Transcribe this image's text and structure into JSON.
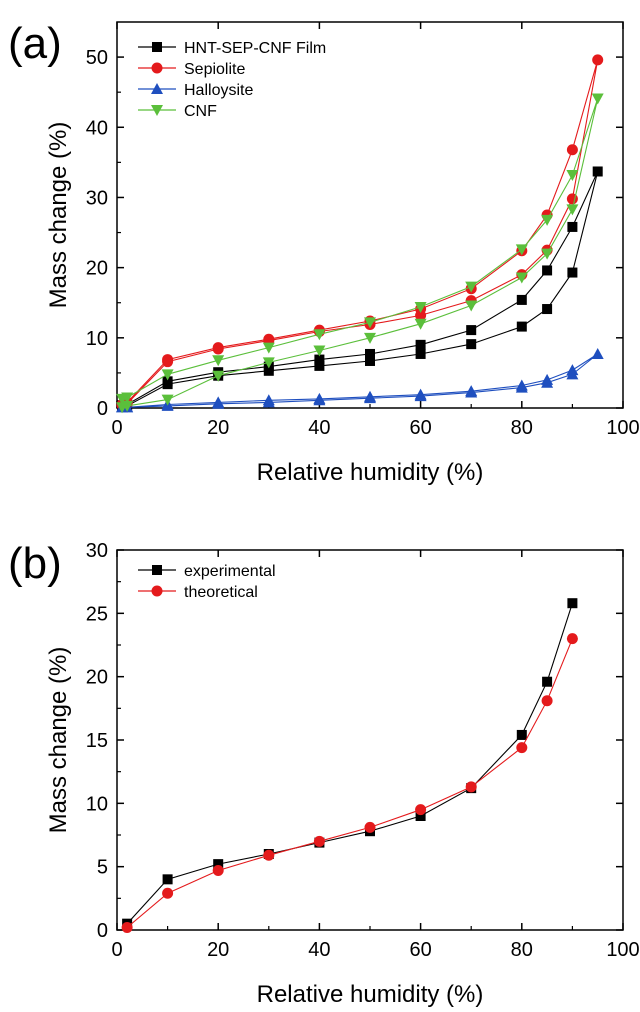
{
  "chart_data": [
    {
      "type": "line",
      "panel_label": "(a)",
      "xlabel": "Relative humidity (%)",
      "ylabel": "Mass change (%)",
      "xlim": [
        0,
        100
      ],
      "ylim": [
        0,
        55
      ],
      "x_ticks": [
        0,
        20,
        40,
        60,
        80,
        100
      ],
      "y_ticks": [
        0,
        10,
        20,
        30,
        40,
        50
      ],
      "grid": false,
      "legend_position": "top-left",
      "series": [
        {
          "name": "HNT-SEP-CNF Film",
          "color": "#000000",
          "marker": "square",
          "x": [
            1,
            2,
            10,
            20,
            30,
            40,
            50,
            60,
            70,
            80,
            85,
            90,
            95,
            90,
            85,
            80,
            70,
            60,
            50,
            40,
            30,
            20,
            10,
            2,
            1
          ],
          "y": [
            0.4,
            0.5,
            3.8,
            5.1,
            5.9,
            6.9,
            7.7,
            9.0,
            11.1,
            15.4,
            19.6,
            25.8,
            33.7,
            19.3,
            14.1,
            11.6,
            9.1,
            7.7,
            6.7,
            6.0,
            5.3,
            4.6,
            3.4,
            0.3,
            0.2
          ]
        },
        {
          "name": "Sepiolite",
          "color": "#e41a1c",
          "marker": "circle",
          "x": [
            1,
            2,
            10,
            20,
            30,
            40,
            50,
            60,
            70,
            80,
            85,
            90,
            95,
            90,
            85,
            80,
            70,
            60,
            50,
            40,
            30,
            20,
            10,
            2,
            1
          ],
          "y": [
            0.5,
            0.8,
            6.9,
            8.6,
            9.8,
            11.1,
            12.4,
            14.1,
            17.0,
            22.4,
            27.5,
            36.8,
            49.6,
            29.8,
            22.5,
            19.0,
            15.3,
            13.2,
            11.9,
            10.9,
            9.6,
            8.4,
            6.6,
            0.6,
            0.4
          ]
        },
        {
          "name": "Halloysite",
          "color": "#1f4fbf",
          "marker": "triangle-up",
          "x": [
            1,
            2,
            10,
            20,
            30,
            40,
            50,
            60,
            70,
            80,
            85,
            90,
            95,
            90,
            85,
            80,
            70,
            60,
            50,
            40,
            30,
            20,
            10,
            2,
            1
          ],
          "y": [
            0.1,
            0.1,
            0.5,
            0.8,
            1.1,
            1.3,
            1.6,
            1.9,
            2.4,
            3.2,
            4.0,
            5.4,
            7.7,
            4.8,
            3.6,
            2.9,
            2.2,
            1.7,
            1.4,
            1.1,
            0.8,
            0.6,
            0.3,
            0.1,
            0.1
          ]
        },
        {
          "name": "CNF",
          "color": "#5bbf3b",
          "marker": "triangle-down",
          "x": [
            1,
            2,
            10,
            20,
            30,
            40,
            50,
            60,
            70,
            80,
            85,
            90,
            95,
            90,
            85,
            80,
            70,
            60,
            50,
            40,
            30,
            20,
            10,
            2,
            1
          ],
          "y": [
            1.3,
            1.5,
            4.8,
            6.8,
            8.6,
            10.5,
            12.2,
            14.4,
            17.3,
            22.6,
            26.8,
            33.2,
            44.1,
            28.3,
            22.0,
            18.6,
            14.6,
            12.0,
            10.0,
            8.2,
            6.5,
            4.6,
            1.2,
            0.3,
            0.1
          ]
        }
      ]
    },
    {
      "type": "line",
      "panel_label": "(b)",
      "xlabel": "Relative humidity (%)",
      "ylabel": "Mass change (%)",
      "xlim": [
        0,
        100
      ],
      "ylim": [
        0,
        30
      ],
      "x_ticks": [
        0,
        20,
        40,
        60,
        80,
        100
      ],
      "y_ticks": [
        0,
        5,
        10,
        15,
        20,
        25,
        30
      ],
      "grid": false,
      "legend_position": "top-left",
      "series": [
        {
          "name": "experimental",
          "color": "#000000",
          "marker": "square",
          "x": [
            2,
            10,
            20,
            30,
            40,
            50,
            60,
            70,
            80,
            85,
            90
          ],
          "y": [
            0.5,
            4.0,
            5.2,
            6.0,
            6.9,
            7.8,
            9.0,
            11.2,
            15.4,
            19.6,
            25.8
          ]
        },
        {
          "name": "theoretical",
          "color": "#e41a1c",
          "marker": "circle",
          "x": [
            2,
            10,
            20,
            30,
            40,
            50,
            60,
            70,
            80,
            85,
            90
          ],
          "y": [
            0.2,
            2.9,
            4.7,
            5.9,
            7.0,
            8.1,
            9.5,
            11.3,
            14.4,
            18.1,
            23.0
          ]
        }
      ]
    }
  ]
}
